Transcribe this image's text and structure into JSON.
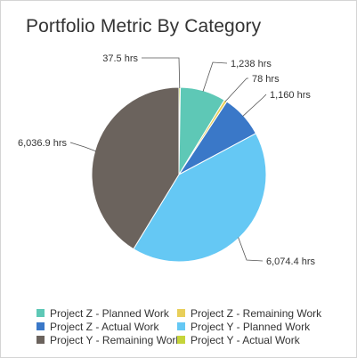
{
  "chart_data": {
    "type": "pie",
    "title": "Portfolio Metric By Category",
    "unit": "hrs",
    "slices": [
      {
        "name": "Project Y - Actual Work",
        "value": 37.5,
        "label": "37.5 hrs",
        "color": "#c5d43a"
      },
      {
        "name": "Project Z - Planned Work",
        "value": 1238,
        "label": "1,238 hrs",
        "color": "#5ec8b6"
      },
      {
        "name": "Project Z - Remaining Work",
        "value": 78,
        "label": "78 hrs",
        "color": "#e8cf5a"
      },
      {
        "name": "Project Z - Actual Work",
        "value": 1160,
        "label": "1,160 hrs",
        "color": "#3a78c8"
      },
      {
        "name": "Project Y - Planned Work",
        "value": 6074.4,
        "label": "6,074.4 hrs",
        "color": "#65c8f4"
      },
      {
        "name": "Project Y - Remaining Work",
        "value": 6036.9,
        "label": "6,036.9 hrs",
        "color": "#6b635d"
      }
    ],
    "legend": [
      {
        "label": "Project Z - Planned Work",
        "color": "#5ec8b6"
      },
      {
        "label": "Project Z - Remaining Work",
        "color": "#e8cf5a"
      },
      {
        "label": "Project Z - Actual Work",
        "color": "#3a78c8"
      },
      {
        "label": "Project Y - Planned Work",
        "color": "#65c8f4"
      },
      {
        "label": "Project Y - Remaining Work",
        "color": "#6b635d"
      },
      {
        "label": "Project Y - Actual Work",
        "color": "#c5d43a"
      }
    ],
    "legend_position": "bottom"
  }
}
